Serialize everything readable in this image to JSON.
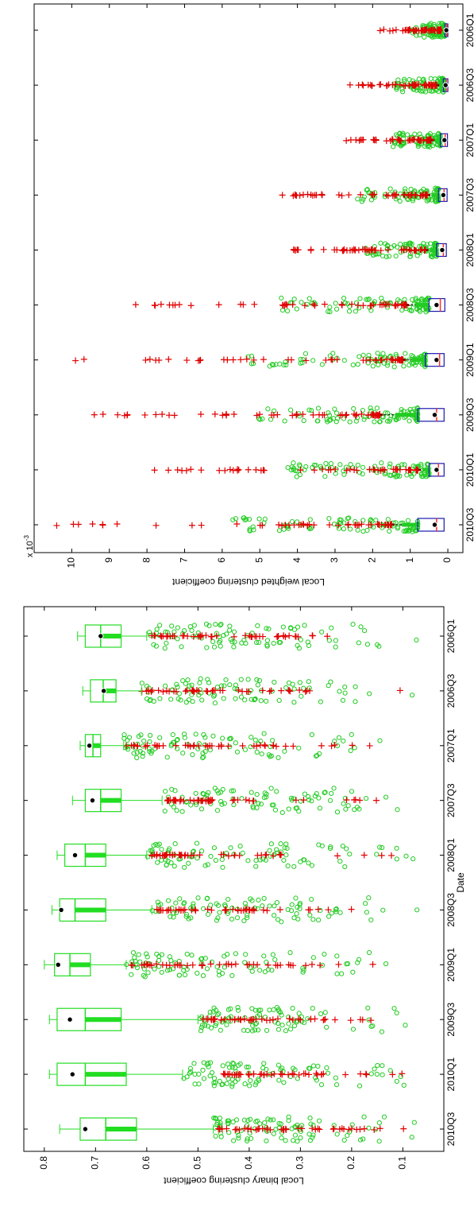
{
  "chart_data": [
    {
      "type": "box",
      "orientation": "rotated-90-cw",
      "xlabel": "Date",
      "ylabel": "Local weighted clustering coefficient",
      "y_multiplier_label": "x 10",
      "y_multiplier_exponent": "-3",
      "ylim": [
        -0.0004,
        0.011
      ],
      "yticks": [
        "0",
        "1",
        "2",
        "3",
        "4",
        "5",
        "6",
        "7",
        "8",
        "9",
        "10"
      ],
      "ytick_values": [
        0,
        0.001,
        0.002,
        0.003,
        0.004,
        0.005,
        0.006,
        0.007,
        0.008,
        0.009,
        0.01
      ],
      "categories": [
        "2006Q1",
        "2006Q3",
        "2007Q1",
        "2007Q3",
        "2008Q1",
        "2008Q3",
        "2009Q1",
        "2009Q3",
        "2010Q1",
        "2010Q3"
      ],
      "colors": {
        "box": "#1a1ab0",
        "median": "#ff3030",
        "outlier": "#e00000",
        "scatter": "#22cc22",
        "whisker": "#000000"
      },
      "boxes": [
        {
          "q1": 0.0,
          "median": 3e-05,
          "q3": 8e-05,
          "mean": 4e-05,
          "outlier_min": 0.00018,
          "outlier_max": 0.0018
        },
        {
          "q1": 0.0,
          "median": 4e-05,
          "q3": 0.00012,
          "mean": 6e-05,
          "outlier_min": 0.0003,
          "outlier_max": 0.0026
        },
        {
          "q1": 1e-05,
          "median": 7e-05,
          "q3": 0.0002,
          "mean": 9e-05,
          "outlier_min": 0.00045,
          "outlier_max": 0.0027
        },
        {
          "q1": 2e-05,
          "median": 0.0001,
          "q3": 0.00025,
          "mean": 0.00012,
          "outlier_min": 0.00055,
          "outlier_max": 0.0044
        },
        {
          "q1": 4e-05,
          "median": 0.00012,
          "q3": 0.0003,
          "mean": 0.00015,
          "outlier_min": 0.0006,
          "outlier_max": 0.0041
        },
        {
          "q1": 8e-05,
          "median": 0.0002,
          "q3": 0.0005,
          "mean": 0.0003,
          "outlier_min": 0.0011,
          "outlier_max": 0.0083
        },
        {
          "q1": 0.0001,
          "median": 0.00022,
          "q3": 0.0006,
          "mean": 0.0003,
          "outlier_min": 0.0012,
          "outlier_max": 0.0099
        },
        {
          "q1": 0.0001,
          "median": 0.0003,
          "q3": 0.0008,
          "mean": 0.00035,
          "outlier_min": 0.0018,
          "outlier_max": 0.0094
        },
        {
          "q1": 0.0001,
          "median": 0.00025,
          "q3": 0.0005,
          "mean": 0.0003,
          "outlier_min": 0.0008,
          "outlier_max": 0.0078
        },
        {
          "q1": 0.0001,
          "median": 0.0003,
          "q3": 0.0008,
          "mean": 0.00035,
          "outlier_min": 0.0015,
          "outlier_max": 0.0104
        }
      ]
    },
    {
      "type": "box",
      "orientation": "rotated-90-cw",
      "xlabel": "Date",
      "ylabel": "Local binary clustering coefficient",
      "ylim": [
        0.02,
        0.84
      ],
      "yticks": [
        "0.1",
        "0.2",
        "0.3",
        "0.4",
        "0.5",
        "0.6",
        "0.7",
        "0.8"
      ],
      "ytick_values": [
        0.1,
        0.2,
        0.3,
        0.4,
        0.5,
        0.6,
        0.7,
        0.8
      ],
      "categories": [
        "2006Q1",
        "2006Q3",
        "2007Q1",
        "2007Q3",
        "2008Q1",
        "2008Q3",
        "2009Q1",
        "2009Q3",
        "2010Q1",
        "2010Q3"
      ],
      "colors": {
        "box": "#22dd22",
        "median": "#22dd22",
        "outlier": "#e00000",
        "scatter": "#22cc22",
        "whisker": "#22dd22"
      },
      "boxes": [
        {
          "q1": 0.65,
          "median": 0.69,
          "q3": 0.72,
          "mean": 0.69,
          "whisker_low": 0.6,
          "whisker_high": 0.735,
          "outlier_min": 0.04,
          "outlier_max": 0.59
        },
        {
          "q1": 0.66,
          "median": 0.685,
          "q3": 0.71,
          "mean": 0.684,
          "whisker_low": 0.61,
          "whisker_high": 0.725,
          "outlier_min": 0.04,
          "outlier_max": 0.61
        },
        {
          "q1": 0.69,
          "median": 0.705,
          "q3": 0.72,
          "mean": 0.712,
          "whisker_low": 0.645,
          "whisker_high": 0.73,
          "outlier_min": 0.03,
          "outlier_max": 0.64
        },
        {
          "q1": 0.65,
          "median": 0.69,
          "q3": 0.72,
          "mean": 0.706,
          "whisker_low": 0.57,
          "whisker_high": 0.745,
          "outlier_min": 0.05,
          "outlier_max": 0.56
        },
        {
          "q1": 0.68,
          "median": 0.72,
          "q3": 0.76,
          "mean": 0.74,
          "whisker_low": 0.6,
          "whisker_high": 0.775,
          "outlier_min": 0.04,
          "outlier_max": 0.59
        },
        {
          "q1": 0.68,
          "median": 0.74,
          "q3": 0.77,
          "mean": 0.767,
          "whisker_low": 0.59,
          "whisker_high": 0.785,
          "outlier_min": 0.05,
          "outlier_max": 0.58
        },
        {
          "q1": 0.71,
          "median": 0.75,
          "q3": 0.78,
          "mean": 0.773,
          "whisker_low": 0.64,
          "whisker_high": 0.8,
          "outlier_min": 0.06,
          "outlier_max": 0.63
        },
        {
          "q1": 0.65,
          "median": 0.72,
          "q3": 0.775,
          "mean": 0.75,
          "whisker_low": 0.5,
          "whisker_high": 0.79,
          "outlier_min": 0.04,
          "outlier_max": 0.49
        },
        {
          "q1": 0.64,
          "median": 0.72,
          "q3": 0.775,
          "mean": 0.745,
          "whisker_low": 0.53,
          "whisker_high": 0.79,
          "outlier_min": 0.04,
          "outlier_max": 0.45
        },
        {
          "q1": 0.62,
          "median": 0.68,
          "q3": 0.73,
          "mean": 0.72,
          "whisker_low": 0.47,
          "whisker_high": 0.77,
          "outlier_min": 0.04,
          "outlier_max": 0.46
        }
      ]
    }
  ]
}
